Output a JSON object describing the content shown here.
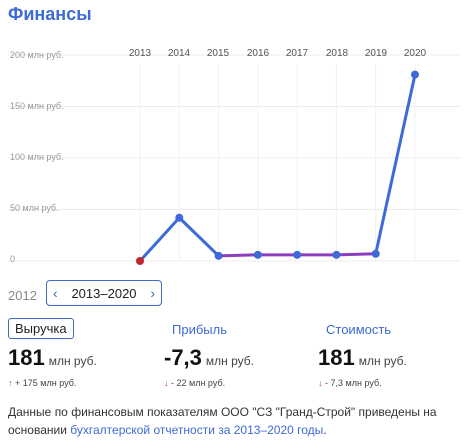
{
  "section_title": "Финансы",
  "chart_data": {
    "type": "line",
    "x": [
      "2013",
      "2014",
      "2015",
      "2016",
      "2017",
      "2018",
      "2019",
      "2020"
    ],
    "y_ticks": [
      "200 млн руб.",
      "150 млн руб.",
      "100 млн руб.",
      "50 млн руб.",
      "0"
    ],
    "ylim": [
      0,
      200
    ],
    "series": [
      {
        "values": [
          0,
          42,
          5,
          6,
          6,
          6,
          7,
          181
        ],
        "color": "#3d6ad6"
      }
    ],
    "highlight_color": "#8b3fbf",
    "marker_color": "#c0282a"
  },
  "range": {
    "prev_year": "2012",
    "label": "2013–2020"
  },
  "metrics": [
    {
      "label": "Выручка",
      "value": "181",
      "unit": "млн руб.",
      "arrow": "↑",
      "delta": "+ 175 млн руб.",
      "direction": "up"
    },
    {
      "label": "Прибыль",
      "value": "-7,3",
      "unit": "млн руб.",
      "arrow": "↓",
      "delta": "- 22 млн руб.",
      "direction": "down"
    },
    {
      "label": "Стоимость",
      "value": "181",
      "unit": "млн руб.",
      "arrow": "↓",
      "delta": "- 7,3 млн руб.",
      "direction": "down"
    }
  ],
  "footer": {
    "text": "Данные по финансовым показателям ООО \"СЗ \"Гранд-Строй\" приведены на основании ",
    "link": "бухгалтерской отчетности за 2013–2020 годы",
    "end": "."
  }
}
